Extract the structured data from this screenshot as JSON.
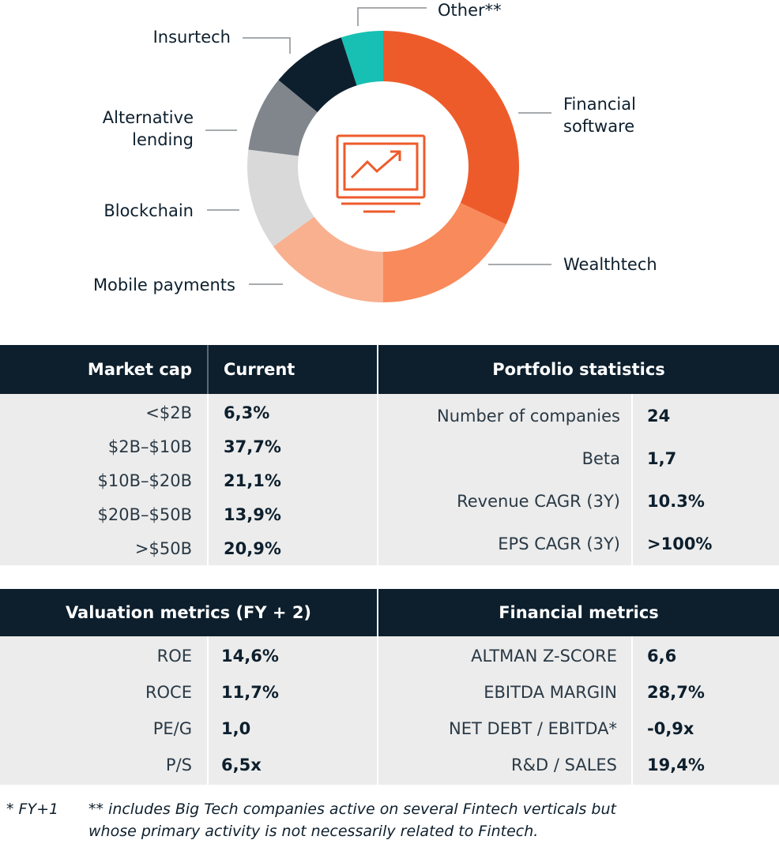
{
  "chart_data": {
    "type": "pie",
    "variant": "donut",
    "slices": [
      {
        "label": "Financial software",
        "value": 32,
        "color": "#ee5b2b"
      },
      {
        "label": "Wealthtech",
        "value": 18,
        "color": "#f98a5b"
      },
      {
        "label": "Mobile payments",
        "value": 15,
        "color": "#f9b08f"
      },
      {
        "label": "Blockchain",
        "value": 12,
        "color": "#d9d9d9"
      },
      {
        "label": "Alternative lending",
        "value": 9,
        "color": "#80868c"
      },
      {
        "label": "Insurtech",
        "value": 9,
        "color": "#0d1f2d"
      },
      {
        "label": "Other**",
        "value": 5,
        "color": "#17c0b2"
      }
    ],
    "center_icon": "monitor-chart-icon"
  },
  "tables": {
    "market_cap": {
      "header_left": "Market cap",
      "header_right": "Current",
      "rows": [
        {
          "label": "<$2B",
          "value": "6,3%"
        },
        {
          "label": "$2B–$10B",
          "value": "37,7%"
        },
        {
          "label": "$10B–$20B",
          "value": "21,1%"
        },
        {
          "label": "$20B–$50B",
          "value": "13,9%"
        },
        {
          "label": ">$50B",
          "value": "20,9%"
        }
      ]
    },
    "portfolio": {
      "header": "Portfolio statistics",
      "rows": [
        {
          "label": "Number of companies",
          "value": "24"
        },
        {
          "label": "Beta",
          "value": "1,7"
        },
        {
          "label": "Revenue CAGR (3Y)",
          "value": "10.3%"
        },
        {
          "label": "EPS CAGR (3Y)",
          "value": ">100%"
        }
      ]
    },
    "valuation": {
      "header": "Valuation metrics (FY + 2)",
      "rows": [
        {
          "label": "ROE",
          "value": "14,6%"
        },
        {
          "label": "ROCE",
          "value": "11,7%"
        },
        {
          "label": "PE/G",
          "value": "1,0"
        },
        {
          "label": "P/S",
          "value": "6,5x"
        }
      ]
    },
    "financial": {
      "header": "Financial metrics",
      "rows": [
        {
          "label": "ALTMAN Z-SCORE",
          "value": "6,6"
        },
        {
          "label": "EBITDA MARGIN",
          "value": "28,7%"
        },
        {
          "label": "NET DEBT / EBITDA*",
          "value": "-0,9x"
        },
        {
          "label": "R&D / SALES",
          "value": "19,4%"
        }
      ]
    }
  },
  "footnotes": {
    "note1": "* FY+1",
    "note2_line1": "** includes Big Tech companies active on several Fintech verticals but",
    "note2_line2": "whose primary activity is not necessarily related to Fintech."
  },
  "colors": {
    "navy": "#0d1f2d",
    "orange": "#ee5b2b",
    "table_bg": "#ececec"
  }
}
